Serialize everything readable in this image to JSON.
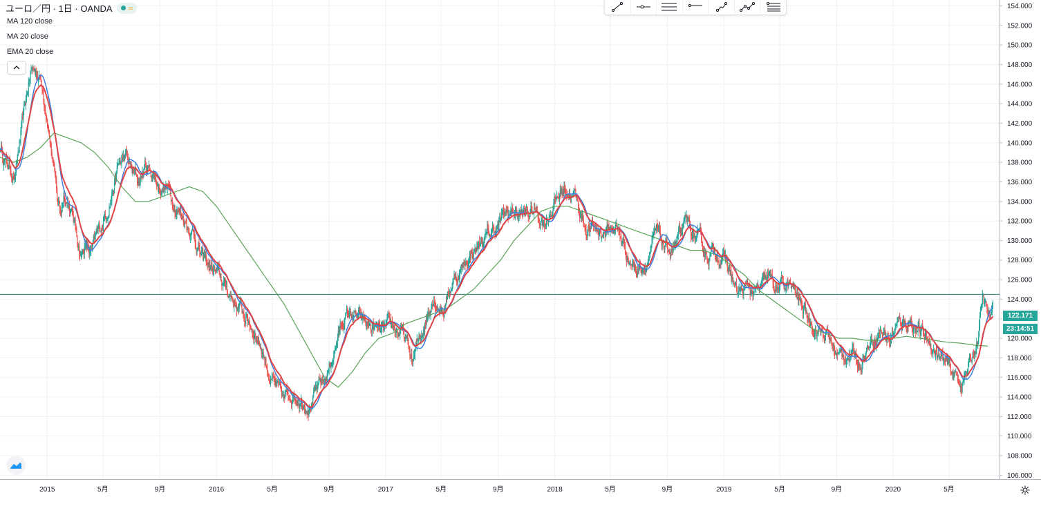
{
  "header": {
    "title": "ユーロ／円 · 1日 · OANDA"
  },
  "indicators": [
    {
      "label": "MA 120 close",
      "color": "#5aa35a"
    },
    {
      "label": "MA 20 close",
      "color": "#3d7ee0"
    },
    {
      "label": "EMA 20 close",
      "color": "#e04343"
    }
  ],
  "toolbar": {
    "tools": [
      "trend-line-icon",
      "horizontal-ray-icon",
      "parallel-channel-icon",
      "horizontal-line-icon",
      "polyline-icon",
      "path-icon",
      "fib-levels-icon"
    ]
  },
  "colors": {
    "up": "#26a69a",
    "down": "#ef5350",
    "ma120": "#5aa35a",
    "ma20": "#3d7ee0",
    "ema20": "#e04343",
    "price_line": "#1e7a6b"
  },
  "price_tag": {
    "price": "122.171",
    "countdown": "23:14:51"
  },
  "chart_data": {
    "type": "line",
    "title": "ユーロ／円 · 1日 · OANDA",
    "y_axis": {
      "ylim": [
        105.6,
        154.6
      ],
      "ticks": [
        "106.000",
        "108.000",
        "110.000",
        "112.000",
        "114.000",
        "116.000",
        "118.000",
        "120.000",
        "122.000",
        "124.000",
        "126.000",
        "128.000",
        "130.000",
        "132.000",
        "134.000",
        "136.000",
        "138.000",
        "140.000",
        "142.000",
        "144.000",
        "146.000",
        "148.000",
        "150.000",
        "152.000",
        "154.000"
      ]
    },
    "x_axis": {
      "tick_labels": [
        "2015",
        "5月",
        "9月",
        "2016",
        "5月",
        "9月",
        "2017",
        "5月",
        "9月",
        "2018",
        "5月",
        "9月",
        "2019",
        "5月",
        "9月",
        "2020",
        "5月"
      ],
      "tick_fractions": [
        0.0,
        0.3288,
        0.6658,
        1.0,
        1.3306,
        1.6667,
        2.0,
        2.3288,
        2.6658,
        3.0,
        3.3288,
        3.6658,
        4.0,
        4.3306,
        4.6667,
        5.0,
        5.3306
      ],
      "start_year_fraction": -0.2794,
      "end_year_fraction": 5.6294
    },
    "horizontal_line": 124.5,
    "last_price": 122.171,
    "series": [
      {
        "name": "ユーロ／円",
        "x": [
          -0.28,
          -0.25,
          -0.22,
          -0.19,
          -0.17,
          -0.14,
          -0.11,
          -0.09,
          -0.06,
          -0.03,
          0.0,
          0.03,
          0.06,
          0.08,
          0.1,
          0.13,
          0.17,
          0.2,
          0.22,
          0.26,
          0.29,
          0.32,
          0.35,
          0.38,
          0.42,
          0.46,
          0.5,
          0.54,
          0.58,
          0.62,
          0.66,
          0.7,
          0.75,
          0.8,
          0.86,
          0.92,
          0.98,
          1.04,
          1.1,
          1.16,
          1.22,
          1.27,
          1.32,
          1.36,
          1.4,
          1.45,
          1.5,
          1.55,
          1.6,
          1.65,
          1.7,
          1.75,
          1.8,
          1.86,
          1.92,
          1.98,
          2.04,
          2.1,
          2.16,
          2.22,
          2.28,
          2.34,
          2.4,
          2.46,
          2.52,
          2.58,
          2.64,
          2.7,
          2.76,
          2.82,
          2.88,
          2.94,
          3.0,
          3.06,
          3.12,
          3.18,
          3.24,
          3.3,
          3.36,
          3.42,
          3.48,
          3.54,
          3.6,
          3.66,
          3.72,
          3.78,
          3.84,
          3.9,
          3.96,
          4.02,
          4.08,
          4.14,
          4.2,
          4.26,
          4.32,
          4.38,
          4.44,
          4.5,
          4.56,
          4.62,
          4.68,
          4.74,
          4.8,
          4.86,
          4.92,
          4.98,
          5.04,
          5.1,
          5.16,
          5.22,
          5.28,
          5.34,
          5.4,
          5.45,
          5.5,
          5.53,
          5.56,
          5.59
        ],
        "values": [
          139.6,
          138.2,
          137.4,
          136.6,
          139.0,
          142.5,
          146.0,
          147.5,
          147.2,
          146.0,
          143.0,
          138.5,
          134.0,
          133.0,
          135.0,
          133.8,
          131.0,
          128.5,
          129.5,
          128.5,
          130.0,
          131.5,
          133.0,
          135.0,
          137.5,
          138.5,
          137.0,
          136.0,
          137.5,
          137.0,
          135.5,
          135.5,
          134.0,
          132.5,
          131.0,
          128.0,
          127.0,
          125.5,
          124.0,
          122.5,
          121.0,
          119.0,
          116.0,
          114.5,
          113.5,
          114.5,
          114.0,
          113.5,
          114.5,
          116.0,
          119.0,
          122.0,
          122.5,
          121.5,
          121.0,
          120.5,
          121.0,
          120.5,
          117.5,
          121.0,
          124.5,
          123.0,
          126.0,
          127.5,
          129.0,
          130.0,
          131.0,
          132.5,
          133.0,
          132.5,
          133.0,
          132.0,
          134.0,
          135.5,
          134.5,
          131.5,
          131.0,
          131.0,
          131.5,
          129.0,
          127.0,
          128.0,
          130.5,
          129.0,
          129.5,
          131.5,
          130.0,
          128.5,
          129.0,
          127.5,
          124.5,
          125.0,
          124.5,
          126.0,
          125.0,
          125.5,
          124.0,
          122.0,
          121.0,
          120.0,
          118.0,
          118.5,
          117.5,
          119.5,
          121.0,
          120.0,
          121.5,
          122.0,
          120.5,
          119.5,
          118.0,
          116.5,
          115.5,
          117.0,
          120.0,
          124.0,
          122.2,
          122.2
        ]
      },
      {
        "name": "MA 120 close",
        "x": [
          -0.28,
          -0.2,
          -0.12,
          -0.04,
          0.04,
          0.12,
          0.2,
          0.28,
          0.36,
          0.44,
          0.52,
          0.6,
          0.68,
          0.76,
          0.84,
          0.92,
          1.0,
          1.08,
          1.16,
          1.24,
          1.32,
          1.4,
          1.48,
          1.56,
          1.64,
          1.72,
          1.8,
          1.88,
          1.96,
          2.04,
          2.12,
          2.2,
          2.28,
          2.36,
          2.44,
          2.52,
          2.6,
          2.68,
          2.76,
          2.84,
          2.92,
          3.0,
          3.08,
          3.16,
          3.24,
          3.32,
          3.4,
          3.48,
          3.56,
          3.64,
          3.72,
          3.8,
          3.88,
          3.96,
          4.04,
          4.12,
          4.2,
          4.28,
          4.36,
          4.44,
          4.52,
          4.6,
          4.68,
          4.76,
          4.84,
          4.92,
          5.0,
          5.08,
          5.16,
          5.24,
          5.32,
          5.4,
          5.48,
          5.56
        ],
        "values": [
          138.5,
          138.0,
          138.5,
          139.5,
          141.0,
          140.5,
          140.0,
          139.0,
          137.5,
          135.5,
          134.0,
          134.0,
          134.5,
          135.0,
          135.5,
          135.0,
          133.5,
          131.5,
          129.5,
          127.5,
          125.5,
          123.5,
          121.0,
          118.5,
          116.0,
          115.0,
          116.5,
          118.5,
          120.0,
          120.5,
          121.5,
          122.0,
          122.5,
          123.0,
          124.0,
          125.0,
          126.5,
          128.0,
          130.0,
          131.5,
          133.0,
          133.5,
          133.5,
          133.0,
          132.5,
          132.0,
          131.5,
          131.0,
          130.5,
          130.0,
          129.5,
          129.0,
          129.0,
          128.5,
          127.5,
          126.5,
          125.0,
          124.0,
          123.0,
          122.0,
          121.0,
          120.5,
          120.0,
          120.0,
          119.8,
          119.8,
          120.0,
          120.2,
          120.0,
          119.8,
          119.6,
          119.5,
          119.3,
          119.2
        ]
      }
    ]
  }
}
